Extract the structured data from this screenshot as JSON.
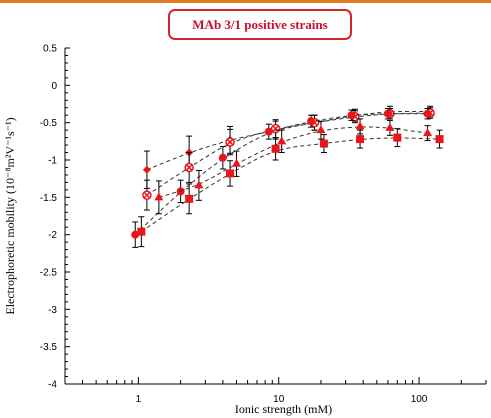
{
  "chart_data": {
    "type": "scatter",
    "title": "MAb 3/1 positive strains",
    "xlabel": "Ionic strength (mM)",
    "ylabel": "Electrophoretic mobility (10⁻⁸m²V⁻¹s⁻¹)",
    "x_scale": "log",
    "xlim": [
      0.3,
      300
    ],
    "ylim": [
      -4,
      0.5
    ],
    "x_ticks": [
      1,
      10,
      100
    ],
    "x_tick_labels": [
      "1",
      "10",
      "100"
    ],
    "y_ticks": [
      0.5,
      0,
      -0.5,
      -1,
      -1.5,
      -2,
      -2.5,
      -3,
      -3.5,
      -4
    ],
    "y_tick_labels": [
      "0.5",
      "0",
      "-0.5",
      "-1",
      "-1.5",
      "-2",
      "-2.5",
      "-3",
      "-3.5",
      "-4"
    ],
    "grid": false,
    "legend": "none",
    "series": [
      {
        "marker": "diamond",
        "color": "#e8161b",
        "x": [
          1.15,
          2.3,
          4.5,
          9.5,
          18,
          35,
          62,
          120
        ],
        "y": [
          -1.13,
          -0.9,
          -0.73,
          -0.6,
          -0.5,
          -0.4,
          -0.35,
          -0.35
        ],
        "err": [
          0.25,
          0.22,
          0.18,
          0.12,
          0.1,
          0.08,
          0.07,
          0.07
        ]
      },
      {
        "marker": "x-circle",
        "color": "#e8161b",
        "x": [
          1.15,
          2.3,
          4.5,
          9.5,
          18,
          35,
          62,
          120
        ],
        "y": [
          -1.47,
          -1.1,
          -0.76,
          -0.58,
          -0.5,
          -0.42,
          -0.38,
          -0.37
        ],
        "err": [
          0.2,
          0.2,
          0.17,
          0.12,
          0.1,
          0.08,
          0.07,
          0.07
        ]
      },
      {
        "marker": "circle",
        "color": "#e8161b",
        "x": [
          0.95,
          2.0,
          4.0,
          8.5,
          17,
          33,
          60,
          115
        ],
        "y": [
          -2.0,
          -1.42,
          -0.97,
          -0.62,
          -0.48,
          -0.4,
          -0.38,
          -0.38
        ],
        "err": [
          0.17,
          0.15,
          0.15,
          0.1,
          0.08,
          0.07,
          0.07,
          0.07
        ]
      },
      {
        "marker": "triangle",
        "color": "#e8161b",
        "x": [
          1.4,
          2.7,
          5.0,
          10.5,
          20,
          38,
          62,
          115
        ],
        "y": [
          -1.5,
          -1.34,
          -1.05,
          -0.75,
          -0.6,
          -0.55,
          -0.57,
          -0.64
        ],
        "err": [
          0.22,
          0.2,
          0.17,
          0.15,
          0.12,
          0.1,
          0.1,
          0.1
        ]
      },
      {
        "marker": "square",
        "color": "#e8161b",
        "x": [
          1.05,
          2.3,
          4.5,
          9.5,
          21,
          38,
          70,
          140
        ],
        "y": [
          -1.96,
          -1.52,
          -1.18,
          -0.85,
          -0.78,
          -0.72,
          -0.7,
          -0.72
        ],
        "err": [
          0.2,
          0.2,
          0.17,
          0.15,
          0.12,
          0.12,
          0.12,
          0.12
        ]
      }
    ]
  }
}
